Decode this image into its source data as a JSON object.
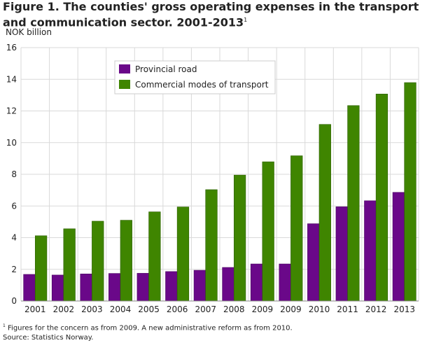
{
  "chart_data": {
    "type": "bar",
    "title": "Figure 1. The counties' gross operating expenses in the transport and communication sector. 2001-2013",
    "title_superscript": "1",
    "ylabel": "NOK billion",
    "xlabel": "",
    "ylim": [
      0,
      16
    ],
    "yticks": [
      0,
      2,
      4,
      6,
      8,
      10,
      12,
      14,
      16
    ],
    "grid": true,
    "legend_placement": "top-center",
    "categories": [
      "2001",
      "2002",
      "2003",
      "2004",
      "2005",
      "2006",
      "2007",
      "2008",
      "2009",
      "2009",
      "2010",
      "2011",
      "2012",
      "2013"
    ],
    "series": [
      {
        "name": "Provincial road",
        "color": "#6a0889",
        "values": [
          1.68,
          1.64,
          1.71,
          1.74,
          1.75,
          1.86,
          1.94,
          2.12,
          2.34,
          2.34,
          4.88,
          5.95,
          6.33,
          6.86
        ]
      },
      {
        "name": "Commercial modes of transport",
        "color": "#3f8500",
        "values": [
          4.12,
          4.56,
          5.04,
          5.1,
          5.63,
          5.94,
          7.03,
          7.95,
          8.79,
          9.17,
          11.15,
          12.34,
          13.07,
          13.79
        ]
      }
    ]
  },
  "footnotes": {
    "note_marker": "1",
    "note": "Figures for the concern as from 2009. A new administrative reform as from 2010.",
    "source": "Source: Statistics Norway."
  }
}
